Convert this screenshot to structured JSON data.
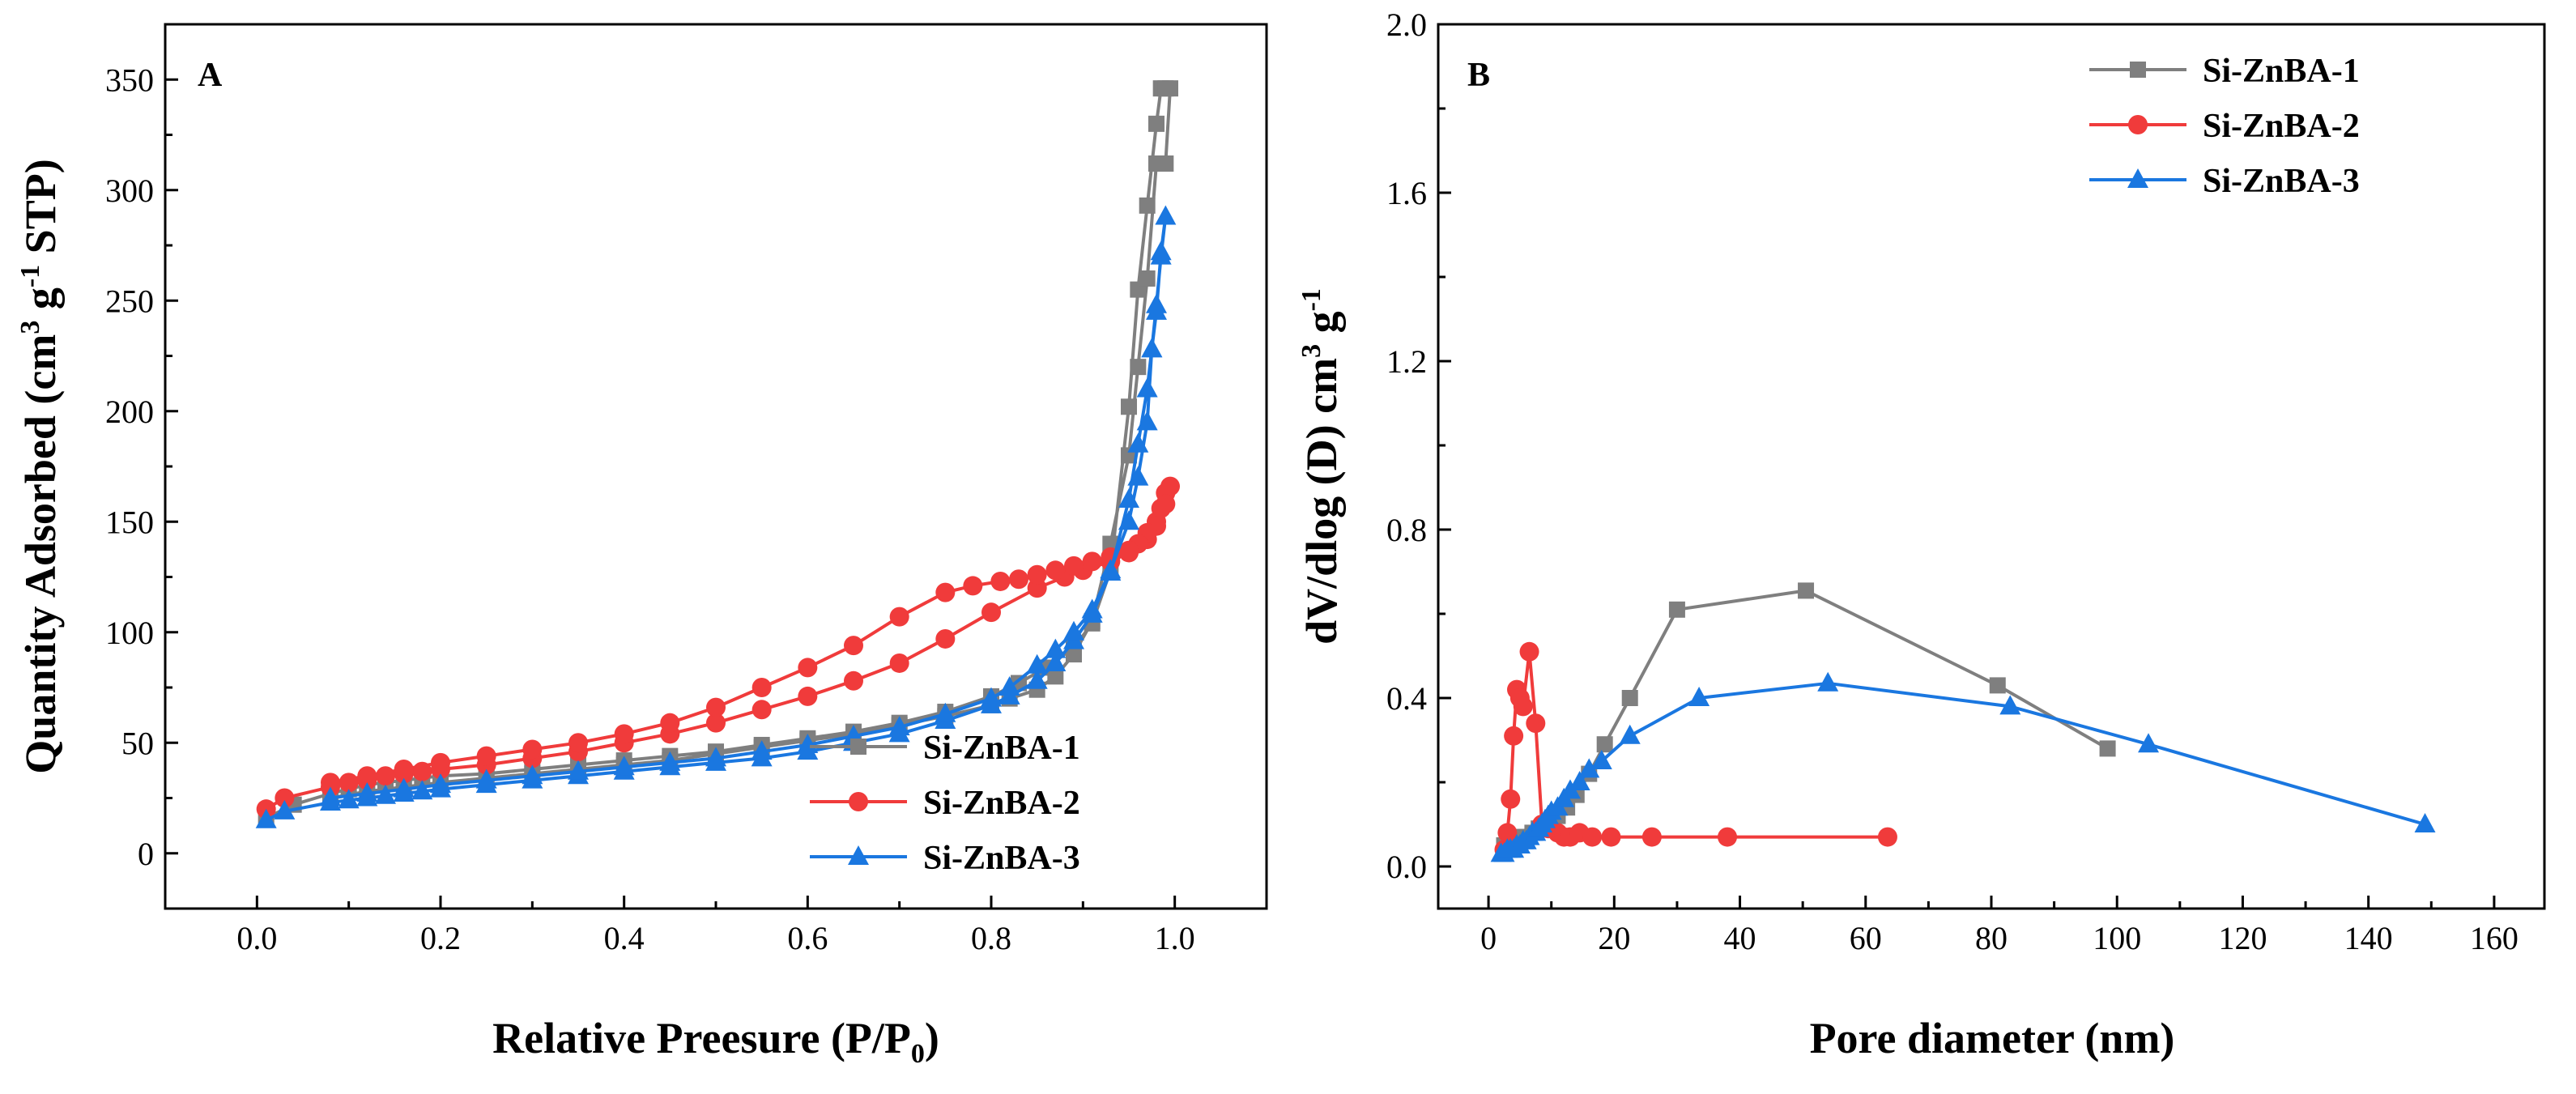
{
  "chart_data": [
    {
      "id": "A",
      "type": "line",
      "panel_label": "A",
      "xlabel": "Relative Preesure (P/P",
      "xlabel_sub": "0",
      "xlabel_end": ")",
      "ylabel": "Quantity Adsorbed (cm",
      "ylabel_sup1": "3",
      "ylabel_mid": " g",
      "ylabel_sup2": "-1",
      "ylabel_end": " STP)",
      "xlim": [
        -0.1,
        1.1
      ],
      "ylim": [
        -25,
        375
      ],
      "xticks": [
        0.0,
        0.2,
        0.4,
        0.6,
        0.8,
        1.0
      ],
      "xtick_labels": [
        "0.0",
        "0.2",
        "0.4",
        "0.6",
        "0.8",
        "1.0"
      ],
      "yticks": [
        0,
        50,
        100,
        150,
        200,
        250,
        300,
        350
      ],
      "ytick_labels": [
        "0",
        "50",
        "100",
        "150",
        "200",
        "250",
        "300",
        "350"
      ],
      "legend_position": "bottom-right",
      "series": [
        {
          "name": "Si-ZnBA-1",
          "color": "#7f7f7f",
          "marker": "square",
          "x": [
            0.01,
            0.04,
            0.08,
            0.1,
            0.12,
            0.14,
            0.16,
            0.18,
            0.2,
            0.25,
            0.3,
            0.35,
            0.4,
            0.45,
            0.5,
            0.55,
            0.6,
            0.65,
            0.7,
            0.75,
            0.8,
            0.83,
            0.86,
            0.89,
            0.91,
            0.93,
            0.95,
            0.96,
            0.97,
            0.98,
            0.985,
            0.99,
            0.995,
            0.99,
            0.985,
            0.98,
            0.97,
            0.96,
            0.95,
            0.93,
            0.91,
            0.89,
            0.87,
            0.85,
            0.82,
            0.8,
            0.75,
            0.7,
            0.65,
            0.6,
            0.55,
            0.5,
            0.45,
            0.4,
            0.35,
            0.3,
            0.25,
            0.2,
            0.16,
            0.12,
            0.08
          ],
          "y": [
            16,
            22,
            27,
            29,
            31,
            32,
            33,
            34,
            35,
            36,
            38,
            40,
            42,
            44,
            46,
            49,
            52,
            55,
            59,
            64,
            71,
            77,
            84,
            93,
            104,
            128,
            202,
            255,
            293,
            330,
            346,
            346,
            346,
            312,
            312,
            312,
            260,
            220,
            180,
            140,
            105,
            90,
            80,
            74,
            70,
            67,
            62,
            58,
            54,
            51,
            48,
            45,
            42,
            40,
            38,
            36,
            34,
            32,
            30,
            28,
            25
          ]
        },
        {
          "name": "Si-ZnBA-2",
          "color": "#f03b3b",
          "marker": "circle",
          "x": [
            0.01,
            0.03,
            0.08,
            0.1,
            0.12,
            0.14,
            0.16,
            0.18,
            0.2,
            0.25,
            0.3,
            0.35,
            0.4,
            0.45,
            0.5,
            0.55,
            0.6,
            0.65,
            0.7,
            0.75,
            0.8,
            0.85,
            0.88,
            0.9,
            0.93,
            0.95,
            0.97,
            0.98,
            0.985,
            0.99,
            0.995,
            0.99,
            0.98,
            0.97,
            0.96,
            0.95,
            0.93,
            0.91,
            0.89,
            0.87,
            0.85,
            0.83,
            0.81,
            0.78,
            0.75,
            0.7,
            0.65,
            0.6,
            0.55,
            0.5,
            0.45,
            0.4,
            0.35,
            0.3,
            0.25,
            0.2,
            0.16,
            0.12,
            0.08
          ],
          "y": [
            20,
            25,
            30,
            32,
            33,
            35,
            36,
            37,
            38,
            40,
            43,
            46,
            50,
            54,
            59,
            65,
            71,
            78,
            86,
            97,
            109,
            120,
            125,
            128,
            132,
            136,
            142,
            150,
            156,
            163,
            166,
            158,
            148,
            145,
            140,
            137,
            134,
            132,
            130,
            128,
            126,
            124,
            123,
            121,
            118,
            107,
            94,
            84,
            75,
            66,
            59,
            54,
            50,
            47,
            44,
            41,
            38,
            35,
            32
          ]
        },
        {
          "name": "Si-ZnBA-3",
          "color": "#1a77e0",
          "marker": "triangle",
          "x": [
            0.01,
            0.03,
            0.08,
            0.1,
            0.12,
            0.14,
            0.16,
            0.18,
            0.2,
            0.25,
            0.3,
            0.35,
            0.4,
            0.45,
            0.5,
            0.55,
            0.6,
            0.65,
            0.7,
            0.75,
            0.8,
            0.82,
            0.85,
            0.87,
            0.89,
            0.91,
            0.93,
            0.95,
            0.96,
            0.97,
            0.975,
            0.98,
            0.985,
            0.99,
            0.985,
            0.98,
            0.975,
            0.97,
            0.96,
            0.95,
            0.93,
            0.91,
            0.89,
            0.87,
            0.85,
            0.82,
            0.8,
            0.75,
            0.7,
            0.65,
            0.6,
            0.55,
            0.5,
            0.45,
            0.4,
            0.35,
            0.3,
            0.25,
            0.2,
            0.16,
            0.12,
            0.08
          ],
          "y": [
            15,
            19,
            23,
            24,
            25,
            26,
            27,
            28,
            29,
            31,
            33,
            35,
            37,
            39,
            41,
            43,
            46,
            50,
            54,
            60,
            67,
            71,
            78,
            86,
            96,
            108,
            127,
            160,
            185,
            210,
            228,
            248,
            270,
            288,
            272,
            245,
            228,
            195,
            170,
            150,
            128,
            110,
            100,
            92,
            85,
            75,
            70,
            63,
            57,
            53,
            49,
            46,
            43,
            41,
            39,
            37,
            35,
            33,
            31,
            29,
            27,
            25
          ]
        }
      ]
    },
    {
      "id": "B",
      "type": "line",
      "panel_label": "B",
      "xlabel": "Pore diameter (nm)",
      "ylabel": "dV/dlog (D) cm",
      "ylabel_sup1": "3",
      "ylabel_mid": " g",
      "ylabel_sup2": "-1",
      "xlim": [
        -8,
        168
      ],
      "ylim": [
        -0.1,
        2.0
      ],
      "xticks": [
        0,
        20,
        40,
        60,
        80,
        100,
        120,
        140,
        160
      ],
      "xtick_labels": [
        "0",
        "20",
        "40",
        "60",
        "80",
        "100",
        "120",
        "140",
        "160"
      ],
      "yticks": [
        0.0,
        0.4,
        0.8,
        1.2,
        1.6,
        2.0
      ],
      "ytick_labels": [
        "0.0",
        "0.4",
        "0.8",
        "1.2",
        "1.6",
        "2.0"
      ],
      "legend_position": "top-right",
      "series": [
        {
          "name": "Si-ZnBA-1",
          "color": "#7f7f7f",
          "marker": "square",
          "x": [
            2.5,
            3.0,
            3.5,
            4.0,
            4.5,
            5.0,
            5.5,
            6.0,
            7.0,
            8.0,
            9.0,
            10.0,
            11.0,
            12.5,
            14.0,
            16.0,
            18.5,
            22.5,
            30.0,
            50.5,
            81.0,
            98.5
          ],
          "y": [
            0.05,
            0.05,
            0.06,
            0.06,
            0.06,
            0.06,
            0.07,
            0.07,
            0.08,
            0.09,
            0.1,
            0.11,
            0.12,
            0.14,
            0.17,
            0.22,
            0.29,
            0.4,
            0.61,
            0.655,
            0.43,
            0.28
          ]
        },
        {
          "name": "Si-ZnBA-2",
          "color": "#f03b3b",
          "marker": "circle",
          "x": [
            2.5,
            3.0,
            3.5,
            4.0,
            4.5,
            5.0,
            5.5,
            6.5,
            7.5,
            8.5,
            9.5,
            11.0,
            12.0,
            13.0,
            14.5,
            16.5,
            19.5,
            26.0,
            38.0,
            63.5
          ],
          "y": [
            0.04,
            0.08,
            0.16,
            0.31,
            0.42,
            0.4,
            0.38,
            0.51,
            0.34,
            0.1,
            0.09,
            0.08,
            0.07,
            0.07,
            0.08,
            0.07,
            0.07,
            0.07,
            0.07,
            0.07
          ]
        },
        {
          "name": "Si-ZnBA-3",
          "color": "#1a77e0",
          "marker": "triangle",
          "x": [
            2.0,
            2.5,
            3.0,
            3.5,
            4.0,
            4.5,
            5.0,
            5.5,
            6.0,
            6.5,
            7.0,
            7.5,
            8.0,
            8.5,
            9.0,
            9.5,
            10.0,
            11.0,
            12.0,
            13.0,
            14.5,
            16.0,
            18.0,
            22.5,
            33.5,
            54.0,
            83.0,
            105.0,
            149.0
          ],
          "y": [
            0.03,
            0.03,
            0.04,
            0.04,
            0.04,
            0.05,
            0.05,
            0.06,
            0.06,
            0.07,
            0.08,
            0.08,
            0.09,
            0.1,
            0.11,
            0.12,
            0.13,
            0.14,
            0.16,
            0.18,
            0.2,
            0.23,
            0.25,
            0.31,
            0.4,
            0.435,
            0.38,
            0.29,
            0.1
          ]
        }
      ]
    }
  ]
}
